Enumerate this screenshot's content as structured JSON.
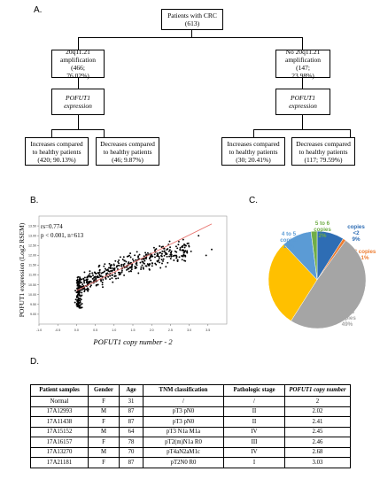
{
  "panels": {
    "a": "A.",
    "b": "B.",
    "c": "C.",
    "d": "D."
  },
  "flowchart": {
    "root": "Patients with CRC\n(613)",
    "left": {
      "group": "20q11.21\namplification (466;\n76.02%)",
      "expression": "POFUT1 expression",
      "increase": "Increases compared\nto healthy patients\n(420; 90.13%)",
      "decrease": "Decreases compared\nto healthy patients\n(46; 9.87%)"
    },
    "right": {
      "group": "No 20q11.21\namplification (147;\n23.98%)",
      "expression": "POFUT1 expression",
      "increase": "Increases compared\nto healthy patients\n(30; 20.41%)",
      "decrease": "Decreases compared\nto healthy patients\n(117; 79.59%)"
    }
  },
  "chart_data": [
    {
      "type": "scatter",
      "xlabel": "POFUT1 copy number - 2",
      "ylabel": "POFUT1 expression (Log2 RSEM)",
      "annotation_r": "rs=0.774",
      "annotation_p": "p < 0.001, n=613",
      "xlim": [
        -1.0,
        4.0
      ],
      "ylim": [
        8.5,
        14.0
      ],
      "xticks": [
        "-1.0",
        "-0.5",
        "0.0",
        "0.5",
        "1.0",
        "1.5",
        "2.0",
        "2.5",
        "3.0",
        "3.5"
      ],
      "yticks": [
        "9.00",
        "9.50",
        "10.00",
        "10.50",
        "11.00",
        "11.50",
        "12.00",
        "12.50",
        "13.00",
        "13.50"
      ],
      "trendline": {
        "x": [
          0.0,
          3.6
        ],
        "y": [
          10.2,
          13.6
        ],
        "color": "#e8736e"
      },
      "point_color": "#000000"
    },
    {
      "type": "pie",
      "slices": [
        {
          "label": "copies <2",
          "percent": "9%",
          "value": 9,
          "color": "#2e6db4"
        },
        {
          "label": "2 copies",
          "percent": "1%",
          "value": 1,
          "color": "#ed7d31"
        },
        {
          "label": "2 to 3 copies",
          "percent": "49%",
          "value": 49,
          "color": "#a5a5a5"
        },
        {
          "label": "3 to 4 copies",
          "percent": "29%",
          "value": 29,
          "color": "#ffc000"
        },
        {
          "label": "4 to 5 copies",
          "percent": "10%",
          "value": 10,
          "color": "#5b9bd5"
        },
        {
          "label": "5 to 6 copies",
          "percent": "2%",
          "value": 2,
          "color": "#70ad47"
        }
      ]
    }
  ],
  "table": {
    "headers": [
      "Patient samples",
      "Gender",
      "Age",
      "TNM classification",
      "Pathologic stage",
      "POFUT1 copy number"
    ],
    "rows": [
      [
        "Normal",
        "F",
        "31",
        "/",
        "/",
        "2"
      ],
      [
        "17A12993",
        "M",
        "87",
        "pT3 pN0",
        "II",
        "2.02"
      ],
      [
        "17A11438",
        "F",
        "87",
        "pT3 pN0",
        "II",
        "2.41"
      ],
      [
        "17A15152",
        "M",
        "64",
        "pT3 N1a M1a",
        "IV",
        "2.45"
      ],
      [
        "17A16157",
        "F",
        "78",
        "pT2(m)N1a R0",
        "III",
        "2.46"
      ],
      [
        "17A13270",
        "M",
        "70",
        "pT4aN2aM1c",
        "IV",
        "2.68"
      ],
      [
        "17A21181",
        "F",
        "87",
        "pT2N0 R0",
        "I",
        "3.03"
      ]
    ]
  }
}
